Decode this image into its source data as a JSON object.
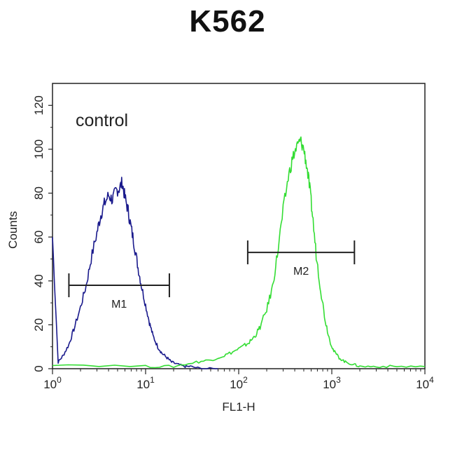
{
  "chart_data": {
    "type": "line",
    "title": "K562",
    "xlabel": "FL1-H",
    "ylabel": "Counts",
    "xscale": "log",
    "xlim": [
      1,
      10000
    ],
    "ylim": [
      0,
      130
    ],
    "x_ticks": [
      {
        "value": 1,
        "base": "10",
        "exp": "0"
      },
      {
        "value": 10,
        "base": "10",
        "exp": "1"
      },
      {
        "value": 100,
        "base": "10",
        "exp": "2"
      },
      {
        "value": 1000,
        "base": "10",
        "exp": "3"
      },
      {
        "value": 10000,
        "base": "10",
        "exp": "4"
      }
    ],
    "y_ticks": [
      0,
      20,
      40,
      60,
      80,
      100,
      120
    ],
    "grid": false,
    "annotation": "control",
    "series": [
      {
        "color": "#1a1a8c",
        "x": [
          1,
          1.15,
          1.3,
          1.5,
          1.7,
          2,
          2.3,
          2.6,
          3,
          3.3,
          3.6,
          4,
          4.4,
          4.8,
          5.2,
          5.6,
          6,
          6.5,
          7,
          7.6,
          8.3,
          9,
          10,
          11,
          12,
          13.5,
          15,
          17,
          19,
          22,
          26,
          30,
          40,
          60
        ],
        "y": [
          60,
          3,
          6,
          11,
          18,
          28,
          38,
          50,
          62,
          70,
          75,
          79,
          77,
          81,
          82,
          85,
          78,
          72,
          64,
          56,
          46,
          38,
          29,
          21,
          15,
          10,
          7,
          5,
          3,
          2,
          1,
          1,
          0,
          0
        ]
      },
      {
        "color": "#33dd33",
        "x": [
          1,
          10,
          20,
          35,
          50,
          70,
          90,
          110,
          130,
          150,
          170,
          200,
          230,
          260,
          300,
          340,
          380,
          420,
          460,
          500,
          540,
          580,
          620,
          680,
          760,
          850,
          950,
          1050,
          1200,
          1400,
          1700,
          2000,
          3000,
          5000,
          10000
        ],
        "y": [
          2,
          1,
          1,
          3,
          4,
          6,
          8,
          10,
          12,
          15,
          19,
          27,
          37,
          52,
          72,
          87,
          96,
          101,
          104,
          100,
          92,
          82,
          70,
          52,
          36,
          22,
          13,
          8,
          5,
          3,
          2,
          1,
          1,
          1,
          1
        ]
      }
    ],
    "gates": [
      {
        "label": "M1",
        "x_start": 1.5,
        "x_end": 18,
        "y": 38
      },
      {
        "label": "M2",
        "x_start": 125,
        "x_end": 1750,
        "y": 53
      }
    ]
  }
}
